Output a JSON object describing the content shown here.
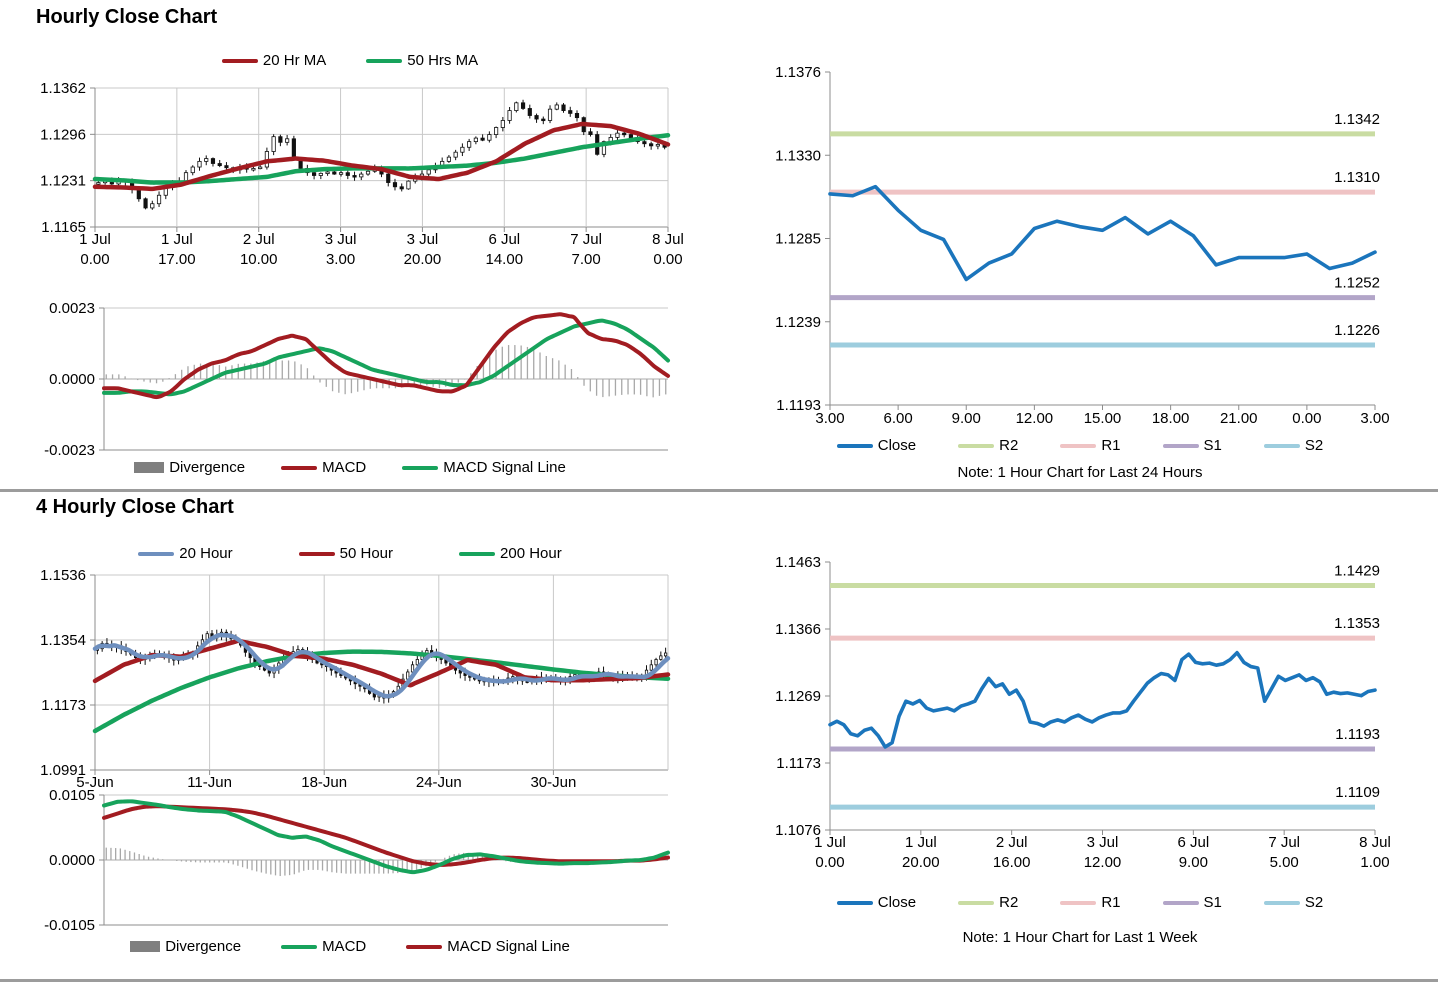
{
  "page": {
    "section1_title": "Hourly Close Chart",
    "section2_title": "4 Hourly Close Chart"
  },
  "colors": {
    "dark_red": "#A21C21",
    "green": "#17A35C",
    "close_blue": "#1B75BC",
    "steel_blue": "#6E8FBE",
    "divergence_bar": "#A8A8A8",
    "divergence_swatch": "#7F7F7F",
    "r2_green": "#C9DCA2",
    "r1_pink": "#EFC3C4",
    "s1_purple": "#B2A5C8",
    "s2_blue": "#9DCDDE",
    "gridline": "#C9C9C9",
    "axis": "#8C8C8C"
  },
  "chart_data": [
    {
      "id": "hourly_candle",
      "type": "candlestick",
      "title": "Hourly Close Chart",
      "ylim": [
        1.1165,
        1.1362
      ],
      "yticks": [
        "1.1362",
        "1.1296",
        "1.1231",
        "1.1165"
      ],
      "xticks2": [
        [
          "1 Jul",
          "0.00"
        ],
        [
          "1 Jul",
          "17.00"
        ],
        [
          "2 Jul",
          "10.00"
        ],
        [
          "3 Jul",
          "3.00"
        ],
        [
          "3 Jul",
          "20.00"
        ],
        [
          "6 Jul",
          "14.00"
        ],
        [
          "7 Jul",
          "7.00"
        ],
        [
          "8 Jul",
          "0.00"
        ]
      ],
      "legend": [
        {
          "label": "20 Hr MA",
          "color": "#A21C21"
        },
        {
          "label": "50 Hrs MA",
          "color": "#17A35C"
        }
      ],
      "close": [
        1.1228,
        1.123,
        1.1226,
        1.1231,
        1.1229,
        1.1218,
        1.1205,
        1.1192,
        1.1198,
        1.121,
        1.1222,
        1.1228,
        1.123,
        1.1242,
        1.125,
        1.1258,
        1.1262,
        1.1255,
        1.1252,
        1.1249,
        1.1246,
        1.125,
        1.1247,
        1.1248,
        1.125,
        1.1272,
        1.1293,
        1.1285,
        1.129,
        1.1262,
        1.1248,
        1.1242,
        1.1238,
        1.1241,
        1.1243,
        1.124,
        1.1242,
        1.1238,
        1.1236,
        1.124,
        1.1244,
        1.1248,
        1.124,
        1.1228,
        1.1222,
        1.1219,
        1.123,
        1.1236,
        1.124,
        1.1246,
        1.1252,
        1.1258,
        1.1264,
        1.1271,
        1.1278,
        1.1286,
        1.1291,
        1.1288,
        1.1296,
        1.1306,
        1.1316,
        1.133,
        1.1341,
        1.1333,
        1.1323,
        1.1318,
        1.1316,
        1.1332,
        1.1338,
        1.133,
        1.1326,
        1.132,
        1.13,
        1.1296,
        1.1268,
        1.1286,
        1.1292,
        1.1298,
        1.1296,
        1.129,
        1.1286,
        1.1283,
        1.128,
        1.1282,
        1.1278
      ],
      "series": [
        {
          "name": "50 Hrs MA",
          "color": "#17A35C",
          "smooth": true,
          "values": [
            1.1233,
            1.1231,
            1.1228,
            1.1228,
            1.123,
            1.1233,
            1.1236,
            1.1244,
            1.1247,
            1.1248,
            1.1248,
            1.1248,
            1.125,
            1.1252,
            1.1256,
            1.1262,
            1.127,
            1.1278,
            1.1284,
            1.129,
            1.1295
          ]
        },
        {
          "name": "20 Hr MA",
          "color": "#A21C21",
          "smooth": true,
          "values": [
            1.1222,
            1.1221,
            1.1219,
            1.1225,
            1.1237,
            1.1248,
            1.1258,
            1.1262,
            1.1259,
            1.1252,
            1.1247,
            1.1236,
            1.1233,
            1.1242,
            1.1258,
            1.1283,
            1.1302,
            1.1311,
            1.1308,
            1.1297,
            1.1282
          ]
        }
      ]
    },
    {
      "id": "hourly_macd",
      "type": "macd",
      "ylim": [
        -0.0023,
        0.0023
      ],
      "yticks": [
        "0.0023",
        "0.0000",
        "-0.0023"
      ],
      "legend": [
        {
          "label": "Divergence",
          "color": "#7F7F7F"
        },
        {
          "label": "MACD",
          "color": "#A21C21"
        },
        {
          "label": "MACD Signal Line",
          "color": "#17A35C"
        }
      ],
      "macd": {
        "color": "#A21C21",
        "values": [
          -0.0003,
          -0.0003,
          -0.0004,
          -0.0005,
          -0.0006,
          -0.0004,
          0.0,
          0.0003,
          0.0005,
          0.0006,
          0.0008,
          0.0009,
          0.0011,
          0.0013,
          0.0014,
          0.0013,
          0.0009,
          0.0005,
          0.0002,
          0.0001,
          0.0,
          -0.0001,
          -0.0002,
          -0.0002,
          -0.0003,
          -0.0004,
          -0.0004,
          -0.0002,
          0.0004,
          0.001,
          0.0015,
          0.0018,
          0.002,
          0.00205,
          0.0021,
          0.002,
          0.0015,
          0.0013,
          0.00125,
          0.0011,
          0.0008,
          0.0004,
          0.0001
        ]
      },
      "signal": {
        "color": "#17A35C",
        "values": [
          -0.00045,
          -0.00045,
          -0.0004,
          -0.0004,
          -0.00045,
          -0.0005,
          -0.0004,
          -0.0002,
          0.0,
          0.0002,
          0.0003,
          0.0004,
          0.0005,
          0.0007,
          0.0008,
          0.0009,
          0.001,
          0.0009,
          0.0007,
          0.0005,
          0.0003,
          0.0002,
          0.0001,
          0.0,
          -0.0001,
          -0.0001,
          -0.0002,
          -0.0002,
          -0.0001,
          0.0001,
          0.0004,
          0.0007,
          0.001,
          0.0013,
          0.0015,
          0.0017,
          0.0018,
          0.0019,
          0.0018,
          0.0016,
          0.0013,
          0.001,
          0.0006
        ]
      },
      "bar_color": "#A8A8A8",
      "bars": 90
    },
    {
      "id": "hourly_close_levels",
      "type": "line",
      "ylim": [
        1.1193,
        1.1376
      ],
      "yticks": [
        "1.1376",
        "1.1330",
        "1.1285",
        "1.1239",
        "1.1193"
      ],
      "xticks": [
        "3.00",
        "6.00",
        "9.00",
        "12.00",
        "15.00",
        "18.00",
        "21.00",
        "0.00",
        "3.00"
      ],
      "levels": [
        {
          "name": "R2",
          "value": 1.1342,
          "label": "1.1342",
          "color": "#C9DCA2"
        },
        {
          "name": "R1",
          "value": 1.131,
          "label": "1.1310",
          "color": "#EFC3C4"
        },
        {
          "name": "S1",
          "value": 1.1252,
          "label": "1.1252",
          "color": "#B2A5C8"
        },
        {
          "name": "S2",
          "value": 1.1226,
          "label": "1.1226",
          "color": "#9DCDDE"
        }
      ],
      "close": {
        "color": "#1B75BC",
        "values": [
          1.1309,
          1.1308,
          1.1313,
          1.13,
          1.1289,
          1.1284,
          1.1262,
          1.1271,
          1.1276,
          1.129,
          1.1294,
          1.1291,
          1.1289,
          1.1296,
          1.1287,
          1.1294,
          1.1286,
          1.127,
          1.1274,
          1.1274,
          1.1274,
          1.1276,
          1.1268,
          1.1271,
          1.1277
        ]
      },
      "legend": [
        {
          "label": "Close",
          "color": "#1B75BC"
        },
        {
          "label": "R2",
          "color": "#C9DCA2"
        },
        {
          "label": "R1",
          "color": "#EFC3C4"
        },
        {
          "label": "S1",
          "color": "#B2A5C8"
        },
        {
          "label": "S2",
          "color": "#9DCDDE"
        }
      ],
      "note": "Note: 1 Hour Chart for Last 24 Hours"
    },
    {
      "id": "four_hourly_candle",
      "type": "candlestick",
      "title": "4 Hourly Close Chart",
      "ylim": [
        1.0991,
        1.1536
      ],
      "yticks": [
        "1.1536",
        "1.1354",
        "1.1173",
        "1.0991"
      ],
      "xticks": [
        "5-Jun",
        "11-Jun",
        "18-Jun",
        "24-Jun",
        "30-Jun"
      ],
      "legend": [
        {
          "label": "20 Hour",
          "color": "#6E8FBE"
        },
        {
          "label": "50 Hour",
          "color": "#A21C21"
        },
        {
          "label": "200 Hour",
          "color": "#17A35C"
        }
      ],
      "close": [
        1.133,
        1.1345,
        1.134,
        1.1334,
        1.1338,
        1.133,
        1.1322,
        1.1315,
        1.1305,
        1.13,
        1.1308,
        1.1312,
        1.131,
        1.1315,
        1.131,
        1.1305,
        1.1298,
        1.1302,
        1.1308,
        1.1312,
        1.132,
        1.1338,
        1.1355,
        1.1372,
        1.136,
        1.1368,
        1.1376,
        1.1365,
        1.1358,
        1.135,
        1.134,
        1.132,
        1.1305,
        1.129,
        1.128,
        1.127,
        1.1262,
        1.1275,
        1.129,
        1.1305,
        1.1315,
        1.1322,
        1.1328,
        1.132,
        1.131,
        1.13,
        1.129,
        1.1285,
        1.128,
        1.127,
        1.1262,
        1.1255,
        1.1248,
        1.124,
        1.1232,
        1.1225,
        1.1218,
        1.1205,
        1.1195,
        1.12,
        1.1192,
        1.12,
        1.121,
        1.1225,
        1.1245,
        1.1265,
        1.1285,
        1.13,
        1.1315,
        1.1325,
        1.1318,
        1.131,
        1.13,
        1.129,
        1.128,
        1.127,
        1.1262,
        1.1255,
        1.125,
        1.1245,
        1.124,
        1.1242,
        1.1238,
        1.124,
        1.1236,
        1.124,
        1.1248,
        1.1252,
        1.1245,
        1.124,
        1.1238,
        1.1242,
        1.1246,
        1.125,
        1.1248,
        1.1244,
        1.124,
        1.1242,
        1.1246,
        1.1252,
        1.1258,
        1.1254,
        1.1248,
        1.1252,
        1.126,
        1.1265,
        1.1258,
        1.1252,
        1.1248,
        1.1252,
        1.1258,
        1.1252,
        1.1246,
        1.125,
        1.1256,
        1.127,
        1.1285,
        1.13,
        1.131,
        1.1318
      ],
      "series": [
        {
          "name": "200 Hour",
          "color": "#17A35C",
          "smooth": true,
          "values": [
            1.11,
            1.1145,
            1.1185,
            1.122,
            1.125,
            1.1275,
            1.1295,
            1.131,
            1.1318,
            1.1322,
            1.1321,
            1.1317,
            1.131,
            1.1301,
            1.1292,
            1.1282,
            1.1272,
            1.1263,
            1.1256,
            1.125,
            1.1246
          ]
        },
        {
          "name": "50 Hour",
          "color": "#A21C21",
          "smooth": true,
          "values": [
            1.124,
            1.1285,
            1.1312,
            1.1308,
            1.133,
            1.1352,
            1.1335,
            1.131,
            1.1302,
            1.1285,
            1.126,
            1.1228,
            1.1262,
            1.1298,
            1.1285,
            1.125,
            1.1242,
            1.1242,
            1.1245,
            1.1248,
            1.1258
          ]
        }
      ],
      "sma": {
        "name": "20 Hour",
        "window": 4,
        "color": "#6E8FBE"
      }
    },
    {
      "id": "four_hourly_macd",
      "type": "macd",
      "ylim": [
        -0.0105,
        0.0105
      ],
      "yticks": [
        "0.0105",
        "0.0000",
        "-0.0105"
      ],
      "legend": [
        {
          "label": "Divergence",
          "color": "#7F7F7F"
        },
        {
          "label": "MACD",
          "color": "#17A35C"
        },
        {
          "label": "MACD Signal Line",
          "color": "#A21C21"
        }
      ],
      "macd": {
        "color": "#17A35C",
        "values": [
          0.0088,
          0.0094,
          0.0095,
          0.0092,
          0.0089,
          0.0085,
          0.0082,
          0.008,
          0.0079,
          0.0078,
          0.007,
          0.006,
          0.005,
          0.004,
          0.0036,
          0.0038,
          0.0032,
          0.0022,
          0.0014,
          0.0006,
          -0.0002,
          -0.001,
          -0.0016,
          -0.002,
          -0.0016,
          -0.0008,
          0.0002,
          0.0008,
          0.0009,
          0.0006,
          0.0002,
          -0.0002,
          -0.0004,
          -0.0005,
          -0.0006,
          -0.0005,
          -0.0005,
          -0.0004,
          -0.0003,
          -0.0001,
          0.0,
          0.0004,
          0.0012
        ]
      },
      "signal": {
        "color": "#A21C21",
        "values": [
          0.0068,
          0.0075,
          0.0082,
          0.0086,
          0.0087,
          0.0086,
          0.0085,
          0.0084,
          0.0083,
          0.0082,
          0.008,
          0.0077,
          0.0072,
          0.0066,
          0.006,
          0.0054,
          0.0048,
          0.0042,
          0.0036,
          0.0028,
          0.002,
          0.0012,
          0.0005,
          -0.0002,
          -0.0006,
          -0.0008,
          -0.0007,
          -0.0004,
          0.0,
          0.0003,
          0.0004,
          0.0003,
          0.0001,
          -0.0001,
          -0.0002,
          -0.0002,
          -0.0002,
          -0.0002,
          -0.0002,
          -0.0001,
          -0.0001,
          0.0001,
          0.0004
        ]
      },
      "bar_color": "#A8A8A8",
      "bars": 120
    },
    {
      "id": "weekly_close_levels",
      "type": "line",
      "ylim": [
        1.1076,
        1.1463
      ],
      "yticks": [
        "1.1463",
        "1.1366",
        "1.1269",
        "1.1173",
        "1.1076"
      ],
      "xticks2": [
        [
          "1 Jul",
          "0.00"
        ],
        [
          "1 Jul",
          "20.00"
        ],
        [
          "2 Jul",
          "16.00"
        ],
        [
          "3 Jul",
          "12.00"
        ],
        [
          "6 Jul",
          "9.00"
        ],
        [
          "7 Jul",
          "5.00"
        ],
        [
          "8 Jul",
          "1.00"
        ]
      ],
      "levels": [
        {
          "name": "R2",
          "value": 1.1429,
          "label": "1.1429",
          "color": "#C9DCA2"
        },
        {
          "name": "R1",
          "value": 1.1353,
          "label": "1.1353",
          "color": "#EFC3C4"
        },
        {
          "name": "S1",
          "value": 1.1193,
          "label": "1.1193",
          "color": "#B2A5C8"
        },
        {
          "name": "S2",
          "value": 1.1109,
          "label": "1.1109",
          "color": "#9DCDDE"
        }
      ],
      "close": {
        "color": "#1B75BC",
        "values": [
          1.1228,
          1.1233,
          1.1228,
          1.1215,
          1.1212,
          1.122,
          1.1223,
          1.1212,
          1.1196,
          1.1202,
          1.124,
          1.1262,
          1.1258,
          1.1263,
          1.1252,
          1.1248,
          1.125,
          1.1252,
          1.1248,
          1.1255,
          1.1258,
          1.1262,
          1.128,
          1.1295,
          1.1283,
          1.1287,
          1.1272,
          1.1278,
          1.1262,
          1.1232,
          1.123,
          1.1226,
          1.1232,
          1.1235,
          1.1232,
          1.1238,
          1.1242,
          1.1236,
          1.1232,
          1.1238,
          1.1242,
          1.1245,
          1.1245,
          1.1248,
          1.1262,
          1.1275,
          1.1288,
          1.1296,
          1.1302,
          1.13,
          1.1292,
          1.1322,
          1.133,
          1.1318,
          1.1316,
          1.1317,
          1.1314,
          1.1316,
          1.1322,
          1.1332,
          1.1318,
          1.1312,
          1.131,
          1.1262,
          1.128,
          1.1298,
          1.1292,
          1.1296,
          1.13,
          1.1292,
          1.1296,
          1.129,
          1.1272,
          1.1275,
          1.1273,
          1.1274,
          1.1272,
          1.127,
          1.1276,
          1.1278
        ]
      },
      "legend": [
        {
          "label": "Close",
          "color": "#1B75BC"
        },
        {
          "label": "R2",
          "color": "#C9DCA2"
        },
        {
          "label": "R1",
          "color": "#EFC3C4"
        },
        {
          "label": "S1",
          "color": "#B2A5C8"
        },
        {
          "label": "S2",
          "color": "#9DCDDE"
        }
      ],
      "note": "Note: 1 Hour Chart for Last 1 Week"
    }
  ]
}
